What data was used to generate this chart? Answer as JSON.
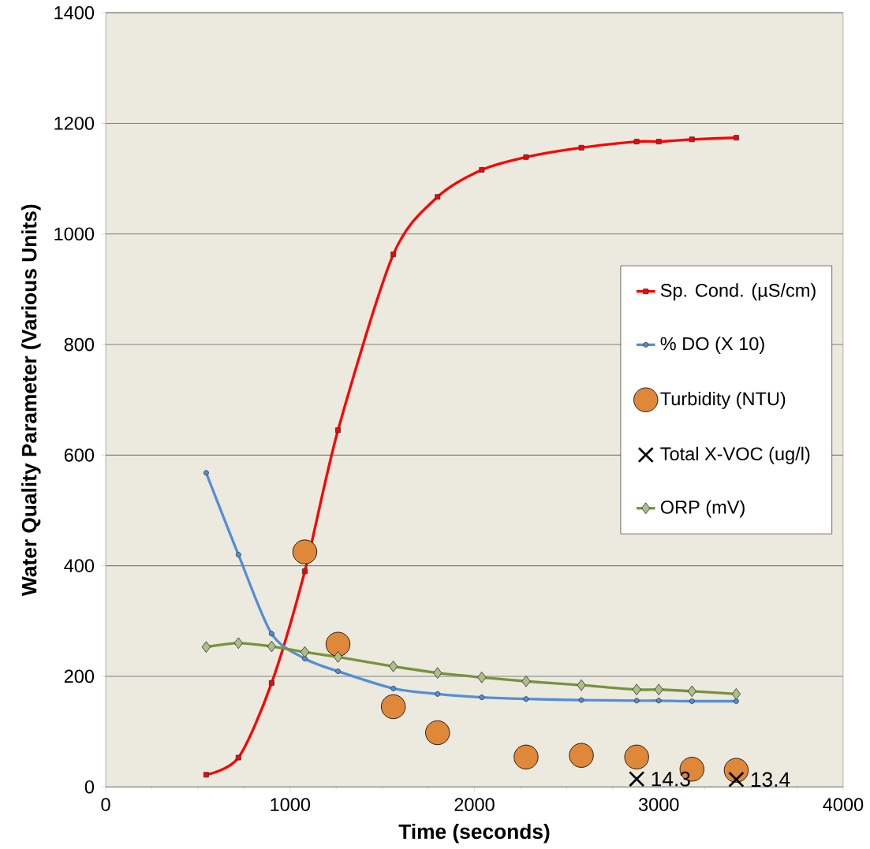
{
  "chart_data": {
    "type": "line",
    "xlabel": "Time (seconds)",
    "ylabel": "Water Quality Parameter (Various Units)",
    "xlim": [
      0,
      4000
    ],
    "ylim": [
      0,
      1400
    ],
    "xticks": [
      0,
      1000,
      2000,
      3000,
      4000
    ],
    "yticks": [
      0,
      200,
      400,
      600,
      800,
      1000,
      1200,
      1400
    ],
    "grid": "y",
    "legend": "right",
    "series": [
      {
        "name": "Sp. Cond.  (µS/cm)",
        "color": "#ff0000",
        "marker": "square",
        "x": [
          545,
          720,
          900,
          1080,
          1260,
          1560,
          1800,
          2040,
          2280,
          2580,
          2880,
          3000,
          3180,
          3420
        ],
        "values": [
          22,
          53,
          188,
          390,
          645,
          963,
          1067,
          1116,
          1139,
          1156,
          1167,
          1167,
          1171,
          1174
        ]
      },
      {
        "name": "% DO (X 10)",
        "color": "#558ed5",
        "marker": "circle",
        "x": [
          545,
          720,
          900,
          1080,
          1260,
          1560,
          1800,
          2040,
          2280,
          2580,
          2880,
          3000,
          3180,
          3420
        ],
        "values": [
          568,
          420,
          277,
          232,
          209,
          178,
          168,
          162,
          159,
          157,
          156,
          156,
          155,
          155
        ]
      },
      {
        "name": "Turbidity (NTU)",
        "type": "scatter",
        "color": "#e0883a",
        "marker": "circle",
        "x": [
          1080,
          1260,
          1560,
          1800,
          2280,
          2580,
          2880,
          3180,
          3420
        ],
        "values": [
          425,
          258,
          145,
          98,
          54,
          57,
          54,
          32,
          30
        ]
      },
      {
        "name": "Total X-VOC (ug/l)",
        "type": "scatter",
        "color": "#000000",
        "marker": "cross",
        "x": [
          2880,
          3420
        ],
        "values": [
          14.3,
          13.4
        ],
        "value_labels": [
          "14.3",
          "13.4"
        ]
      },
      {
        "name": "ORP (mV)",
        "color": "#77933c",
        "marker": "diamond",
        "x": [
          545,
          720,
          900,
          1080,
          1260,
          1560,
          1800,
          2040,
          2280,
          2580,
          2880,
          3000,
          3180,
          3420
        ],
        "values": [
          253,
          260,
          254,
          244,
          235,
          218,
          206,
          198,
          191,
          184,
          176,
          176,
          173,
          168
        ]
      }
    ]
  }
}
